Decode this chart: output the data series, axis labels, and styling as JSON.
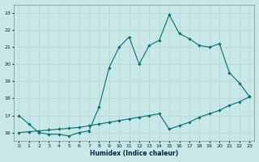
{
  "xlabel": "Humidex (Indice chaleur)",
  "ylabel": "",
  "background_color": "#c8e8e8",
  "grid_color": "#b8d8d8",
  "line_color": "#007070",
  "x_min": -0.5,
  "x_max": 23.5,
  "y_min": 15.5,
  "y_max": 23.5,
  "y_ticks": [
    16,
    17,
    18,
    19,
    20,
    21,
    22,
    23
  ],
  "x_ticks": [
    0,
    1,
    2,
    3,
    4,
    5,
    6,
    7,
    8,
    9,
    10,
    11,
    12,
    13,
    14,
    15,
    16,
    17,
    18,
    19,
    20,
    21,
    22,
    23
  ],
  "series1_x": [
    0,
    1,
    2,
    3,
    4,
    5,
    6,
    7,
    8,
    9,
    10,
    11,
    12,
    13,
    14,
    15,
    16,
    17,
    18,
    19,
    20,
    21,
    22,
    23
  ],
  "series1_y": [
    17.0,
    16.5,
    16.0,
    15.9,
    15.9,
    15.8,
    16.0,
    16.1,
    17.5,
    19.8,
    21.0,
    21.6,
    20.0,
    21.1,
    21.4,
    22.9,
    21.8,
    21.5,
    21.1,
    21.0,
    21.2,
    19.5,
    18.9,
    18.1
  ],
  "series2_x": [
    0,
    1,
    2,
    3,
    4,
    5,
    6,
    7,
    8,
    9,
    10,
    11,
    12,
    13,
    14,
    15,
    16,
    17,
    18,
    19,
    20,
    21,
    22,
    23
  ],
  "series2_y": [
    16.0,
    16.05,
    16.1,
    16.15,
    16.2,
    16.25,
    16.3,
    16.4,
    16.5,
    16.6,
    16.7,
    16.8,
    16.9,
    17.0,
    17.1,
    16.2,
    16.4,
    16.6,
    16.9,
    17.1,
    17.3,
    17.6,
    17.8,
    18.1
  ]
}
